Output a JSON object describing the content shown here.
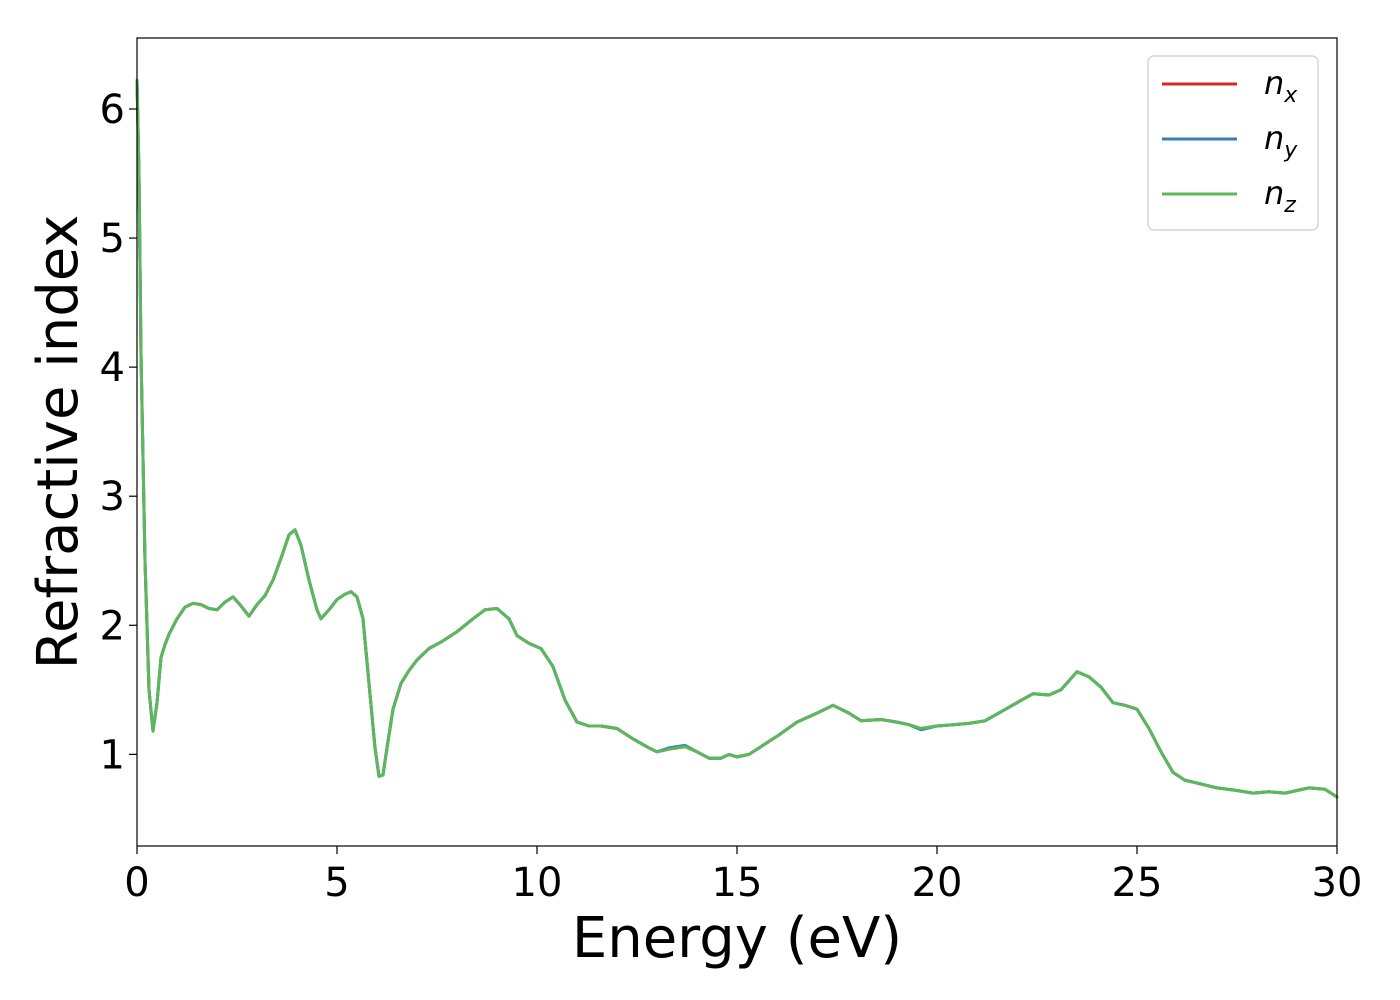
{
  "chart_data": {
    "type": "line",
    "xlabel": "Energy (eV)",
    "ylabel": "Refractive index",
    "xlim": [
      0,
      30
    ],
    "ylim": [
      0.29,
      6.55
    ],
    "xticks": [
      0,
      5,
      10,
      15,
      20,
      25,
      30
    ],
    "yticks": [
      1,
      2,
      3,
      4,
      5,
      6
    ],
    "grid": false,
    "legend_position": "top-right",
    "x": [
      0,
      0.05,
      0.1,
      0.2,
      0.3,
      0.4,
      0.5,
      0.6,
      0.7,
      0.8,
      1.0,
      1.2,
      1.4,
      1.6,
      1.8,
      2.0,
      2.2,
      2.4,
      2.6,
      2.8,
      3.0,
      3.2,
      3.4,
      3.6,
      3.8,
      3.95,
      4.1,
      4.3,
      4.5,
      4.6,
      4.8,
      5.0,
      5.2,
      5.35,
      5.5,
      5.65,
      5.8,
      5.95,
      6.05,
      6.15,
      6.25,
      6.4,
      6.6,
      6.8,
      7.0,
      7.3,
      7.6,
      8.0,
      8.4,
      8.7,
      9.0,
      9.3,
      9.5,
      9.8,
      10.1,
      10.4,
      10.7,
      11.0,
      11.3,
      11.6,
      12.0,
      12.4,
      12.8,
      13.0,
      13.3,
      13.7,
      14.0,
      14.3,
      14.6,
      14.8,
      15.0,
      15.3,
      15.6,
      16.0,
      16.5,
      17.0,
      17.4,
      17.8,
      18.1,
      18.6,
      19.0,
      19.3,
      19.6,
      20.0,
      20.4,
      20.8,
      21.2,
      21.6,
      22.0,
      22.4,
      22.8,
      23.1,
      23.5,
      23.8,
      24.1,
      24.4,
      24.7,
      25.0,
      25.3,
      25.6,
      25.9,
      26.2,
      26.6,
      27.0,
      27.5,
      27.9,
      28.3,
      28.7,
      29.0,
      29.3,
      29.7,
      30.0
    ],
    "series": [
      {
        "name": "n_x",
        "color": "#d62728",
        "values": [
          6.22,
          5.5,
          4.1,
          2.5,
          1.5,
          1.18,
          1.4,
          1.75,
          1.85,
          1.93,
          2.05,
          2.14,
          2.17,
          2.16,
          2.13,
          2.12,
          2.18,
          2.22,
          2.15,
          2.07,
          2.16,
          2.23,
          2.35,
          2.52,
          2.7,
          2.74,
          2.62,
          2.35,
          2.12,
          2.05,
          2.12,
          2.2,
          2.24,
          2.26,
          2.22,
          2.05,
          1.55,
          1.05,
          0.83,
          0.84,
          1.05,
          1.35,
          1.55,
          1.65,
          1.73,
          1.82,
          1.87,
          1.95,
          2.05,
          2.12,
          2.13,
          2.05,
          1.92,
          1.86,
          1.82,
          1.68,
          1.42,
          1.25,
          1.22,
          1.22,
          1.2,
          1.12,
          1.05,
          1.02,
          1.04,
          1.06,
          1.02,
          0.97,
          0.97,
          1.0,
          0.98,
          1.0,
          1.06,
          1.14,
          1.25,
          1.32,
          1.38,
          1.32,
          1.26,
          1.27,
          1.25,
          1.23,
          1.2,
          1.22,
          1.23,
          1.24,
          1.26,
          1.33,
          1.4,
          1.47,
          1.46,
          1.5,
          1.64,
          1.6,
          1.52,
          1.4,
          1.38,
          1.35,
          1.2,
          1.02,
          0.86,
          0.8,
          0.77,
          0.74,
          0.72,
          0.7,
          0.71,
          0.7,
          0.72,
          0.74,
          0.73,
          0.67
        ]
      },
      {
        "name": "n_y",
        "color": "#377eb8",
        "values": [
          6.22,
          5.5,
          4.1,
          2.5,
          1.5,
          1.18,
          1.4,
          1.75,
          1.85,
          1.93,
          2.05,
          2.14,
          2.17,
          2.16,
          2.13,
          2.12,
          2.18,
          2.22,
          2.15,
          2.07,
          2.16,
          2.23,
          2.35,
          2.52,
          2.7,
          2.74,
          2.62,
          2.35,
          2.12,
          2.05,
          2.12,
          2.2,
          2.24,
          2.26,
          2.22,
          2.05,
          1.55,
          1.05,
          0.83,
          0.84,
          1.05,
          1.35,
          1.55,
          1.65,
          1.73,
          1.82,
          1.87,
          1.95,
          2.05,
          2.12,
          2.13,
          2.05,
          1.92,
          1.86,
          1.82,
          1.68,
          1.42,
          1.25,
          1.22,
          1.22,
          1.2,
          1.12,
          1.05,
          1.02,
          1.05,
          1.07,
          1.02,
          0.97,
          0.97,
          1.0,
          0.98,
          1.0,
          1.06,
          1.14,
          1.25,
          1.32,
          1.38,
          1.32,
          1.26,
          1.27,
          1.25,
          1.23,
          1.19,
          1.22,
          1.23,
          1.24,
          1.26,
          1.33,
          1.4,
          1.47,
          1.46,
          1.5,
          1.64,
          1.6,
          1.52,
          1.4,
          1.38,
          1.35,
          1.2,
          1.02,
          0.86,
          0.8,
          0.77,
          0.74,
          0.72,
          0.7,
          0.71,
          0.7,
          0.72,
          0.74,
          0.73,
          0.67
        ]
      },
      {
        "name": "n_z",
        "color": "#5cb85c",
        "values": [
          6.22,
          5.5,
          4.1,
          2.5,
          1.5,
          1.18,
          1.4,
          1.75,
          1.85,
          1.93,
          2.05,
          2.14,
          2.17,
          2.16,
          2.13,
          2.12,
          2.18,
          2.22,
          2.15,
          2.07,
          2.16,
          2.23,
          2.35,
          2.52,
          2.7,
          2.74,
          2.62,
          2.35,
          2.12,
          2.05,
          2.12,
          2.2,
          2.24,
          2.26,
          2.22,
          2.05,
          1.55,
          1.05,
          0.83,
          0.84,
          1.05,
          1.35,
          1.55,
          1.65,
          1.73,
          1.82,
          1.87,
          1.95,
          2.05,
          2.12,
          2.13,
          2.05,
          1.92,
          1.86,
          1.82,
          1.68,
          1.42,
          1.25,
          1.22,
          1.22,
          1.2,
          1.12,
          1.05,
          1.02,
          1.04,
          1.06,
          1.02,
          0.97,
          0.97,
          1.0,
          0.98,
          1.0,
          1.06,
          1.14,
          1.25,
          1.32,
          1.38,
          1.32,
          1.26,
          1.27,
          1.25,
          1.23,
          1.2,
          1.22,
          1.23,
          1.24,
          1.26,
          1.33,
          1.4,
          1.47,
          1.46,
          1.5,
          1.64,
          1.6,
          1.52,
          1.4,
          1.38,
          1.35,
          1.2,
          1.02,
          0.86,
          0.8,
          0.77,
          0.74,
          0.72,
          0.7,
          0.71,
          0.7,
          0.72,
          0.74,
          0.73,
          0.67
        ]
      }
    ],
    "legend": [
      {
        "base": "n",
        "sub": "x"
      },
      {
        "base": "n",
        "sub": "y"
      },
      {
        "base": "n",
        "sub": "z"
      }
    ]
  }
}
